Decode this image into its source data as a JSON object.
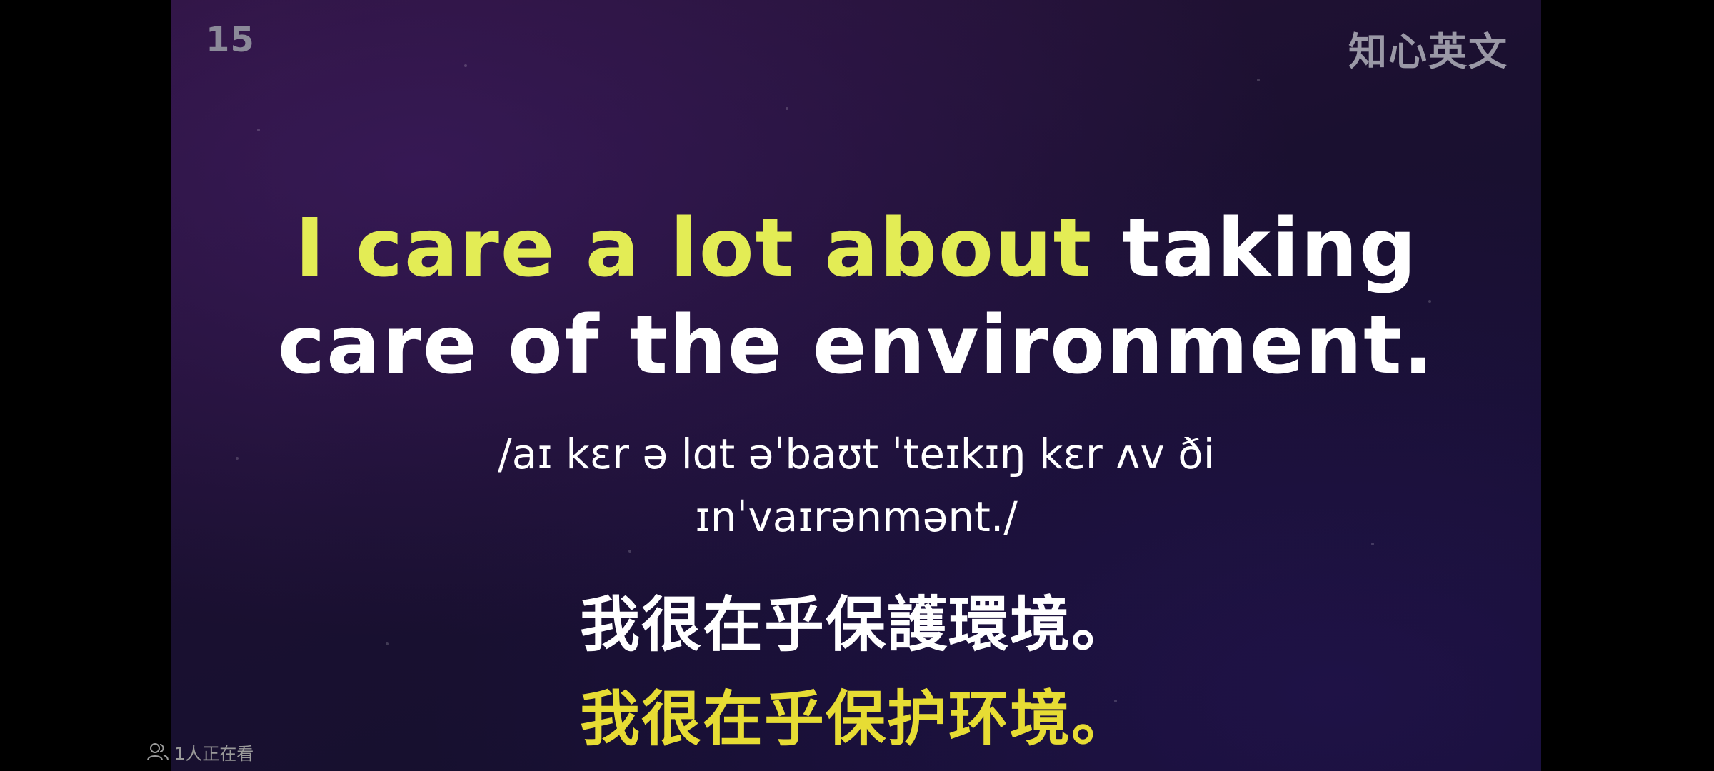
{
  "video": {
    "episode_number": "15",
    "watermark": "知心英文"
  },
  "subtitle": {
    "english_highlight": "I care a lot about",
    "english_rest_line1": " taking",
    "english_line2": "care of the environment.",
    "phonetic_line1": "/aɪ kɛr ə lɑt əˈbaʊt ˈteɪkɪŋ kɛr ʌv ði",
    "phonetic_line2": "ɪnˈvaɪrənmənt./",
    "chinese_traditional": "我很在乎保護環境。",
    "chinese_simplified": "我很在乎保护环境。"
  },
  "overlay": {
    "viewer_count_text": "1人正在看",
    "viewer_icon": "people-icon"
  },
  "colors": {
    "highlight_english": "#e3ec55",
    "highlight_chinese": "#e7dc34",
    "text_primary": "#ffffff"
  }
}
